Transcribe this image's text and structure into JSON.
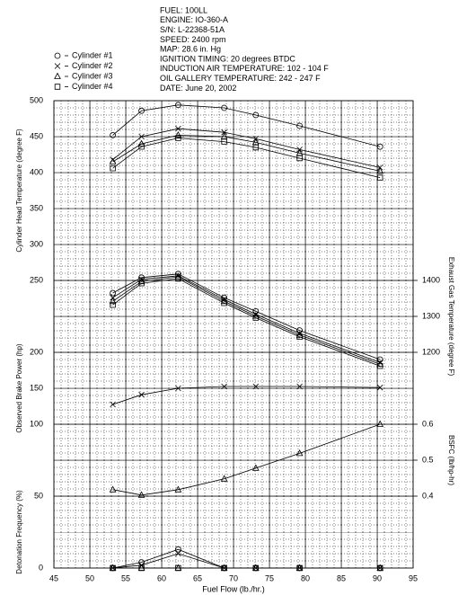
{
  "header": [
    "FUEL:  100LL",
    "ENGINE:  IO-360-A",
    "S/N:  L-22368-51A",
    "SPEED:  2400 rpm",
    "MAP:  28.6 in. Hg",
    "IGNITION TIMING:  20 degrees BTDC",
    "INDUCTION AIR TEMPERATURE:  102 - 104 F",
    "OIL GALLERY TEMPERATURE:  242 - 247 F",
    "DATE:  June 20, 2002"
  ],
  "chart_data": [
    {
      "type": "line",
      "ylabel": "Cylinder Head Temperature (degree F)",
      "x": [
        53.2,
        57.2,
        62.3,
        68.7,
        73.1,
        79.2,
        90.4
      ],
      "xlim": [
        45,
        95
      ],
      "ylim": [
        250,
        500
      ],
      "yticks": [
        250,
        300,
        350,
        400,
        450,
        500
      ],
      "grid": true,
      "series": [
        {
          "name": "Cylinder #1",
          "color": "#000000",
          "marker": "circle",
          "values": [
            452,
            486,
            494,
            490,
            480,
            465,
            436
          ]
        },
        {
          "name": "Cylinder #2",
          "color": "#000000",
          "marker": "x",
          "values": [
            418,
            450,
            461,
            456,
            447,
            432,
            407
          ]
        },
        {
          "name": "Cylinder #3",
          "color": "#000000",
          "marker": "triangle",
          "values": [
            415,
            440,
            452,
            450,
            442,
            427,
            402
          ]
        },
        {
          "name": "Cylinder #4",
          "color": "#000000",
          "marker": "square",
          "values": [
            406,
            436,
            448,
            443,
            435,
            420,
            393
          ]
        }
      ]
    },
    {
      "type": "line",
      "y2label": "Exhaust Gas Temperature (degree F)",
      "x": [
        53.2,
        57.2,
        62.3,
        68.7,
        73.1,
        79.2,
        90.4
      ],
      "xlim": [
        45,
        95
      ],
      "y2lim": [
        1200,
        1400
      ],
      "y2ticks": [
        1200,
        1300,
        1400
      ],
      "series": [
        {
          "color": "#000000",
          "marker": "circle",
          "axis": "y2",
          "values": [
            1365,
            1408,
            1418,
            1352,
            1314,
            1261,
            1180
          ]
        },
        {
          "color": "#000000",
          "marker": "x",
          "axis": "y2",
          "values": [
            1352,
            1403,
            1413,
            1347,
            1306,
            1253,
            1172
          ]
        },
        {
          "color": "#000000",
          "marker": "triangle",
          "axis": "y2",
          "values": [
            1342,
            1397,
            1410,
            1342,
            1301,
            1248,
            1167
          ]
        },
        {
          "color": "#000000",
          "marker": "square",
          "axis": "y2",
          "values": [
            1332,
            1392,
            1405,
            1337,
            1296,
            1243,
            1162
          ]
        }
      ]
    },
    {
      "type": "line",
      "ylabel": "Observed Brake Power (hp)",
      "x": [
        53.2,
        57.2,
        62.3,
        68.7,
        73.1,
        79.2,
        90.4
      ],
      "xlim": [
        45,
        95
      ],
      "ylim": [
        100,
        200
      ],
      "yticks": [
        100,
        150,
        200
      ],
      "series": [
        {
          "color": "#000000",
          "marker": "x",
          "values": [
            127.5,
            141,
            150,
            152.5,
            152.5,
            152.5,
            151
          ]
        }
      ]
    },
    {
      "type": "line",
      "y2label": "BSFC (lb/hp-hr)",
      "x": [
        53.2,
        57.2,
        62.3,
        68.7,
        73.1,
        79.2,
        90.4
      ],
      "xlim": [
        45,
        95
      ],
      "y2lim": [
        0.4,
        0.6
      ],
      "y2ticks": [
        0.4,
        0.5,
        0.6
      ],
      "series": [
        {
          "color": "#000000",
          "marker": "triangle",
          "axis": "y2",
          "values": [
            0.418,
            0.403,
            0.418,
            0.448,
            0.478,
            0.519,
            0.6
          ]
        }
      ]
    },
    {
      "type": "line",
      "ylabel": "Detonation Frequency (%)",
      "xlabel": "Fuel Flow (lb./hr.)",
      "x": [
        53.2,
        57.2,
        62.3,
        68.7,
        73.1,
        79.2,
        90.4
      ],
      "xlim": [
        45,
        95
      ],
      "xticks": [
        45,
        50,
        55,
        60,
        65,
        70,
        75,
        80,
        85,
        90,
        95
      ],
      "ylim": [
        0,
        50
      ],
      "yticks": [
        0,
        50
      ],
      "series": [
        {
          "color": "#000000",
          "marker": "circle",
          "values": [
            0,
            4,
            13,
            0,
            0,
            0,
            0
          ]
        },
        {
          "color": "#000000",
          "marker": "x",
          "values": [
            0,
            2,
            10,
            0,
            0,
            0,
            0
          ]
        },
        {
          "color": "#000000",
          "marker": "triangle",
          "values": [
            0,
            0,
            0,
            0,
            0,
            0,
            0
          ]
        },
        {
          "color": "#000000",
          "marker": "square",
          "values": [
            0,
            0,
            0,
            0,
            0,
            0,
            0
          ]
        }
      ]
    }
  ]
}
